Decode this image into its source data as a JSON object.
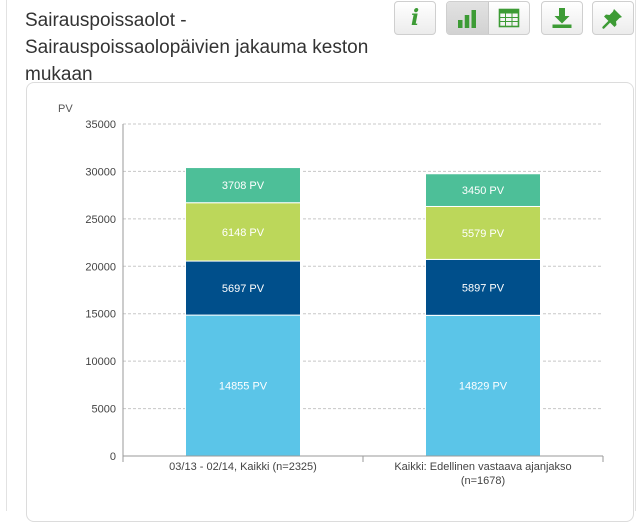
{
  "title": "Sairauspoissaolot - Sairauspoissaolopäivien jakauma keston mukaan",
  "toolbar": {
    "info_icon": "info-icon",
    "bar_chart_icon": "bar-chart-icon",
    "table_icon": "table-icon",
    "download_icon": "download-icon",
    "pin_icon": "pin-icon"
  },
  "colors": {
    "accent": "#3d9b35",
    "segments": [
      "#5bc5e8",
      "#004f8b",
      "#bcd75a",
      "#4dbf98"
    ]
  },
  "chart_data": {
    "type": "bar",
    "stacked": true,
    "ylabel": "PV",
    "ylim": [
      0,
      35000
    ],
    "yticks": [
      0,
      5000,
      10000,
      15000,
      20000,
      25000,
      30000,
      35000
    ],
    "categories": [
      [
        "03/13 - 02/14, Kaikki (n=2325)"
      ],
      [
        "Kaikki: Edellinen vastaava ajanjakso",
        "(n=1678)"
      ]
    ],
    "series": [
      {
        "values": [
          14855,
          14829
        ],
        "labels": [
          "14855 PV",
          "14829 PV"
        ],
        "color": "#5bc5e8"
      },
      {
        "values": [
          5697,
          5897
        ],
        "labels": [
          "5697 PV",
          "5897 PV"
        ],
        "color": "#004f8b"
      },
      {
        "values": [
          6148,
          5579
        ],
        "labels": [
          "6148 PV",
          "5579 PV"
        ],
        "color": "#bcd75a"
      },
      {
        "values": [
          3708,
          3450
        ],
        "labels": [
          "3708 PV",
          "3450 PV"
        ],
        "color": "#4dbf98"
      }
    ],
    "grid": true
  }
}
